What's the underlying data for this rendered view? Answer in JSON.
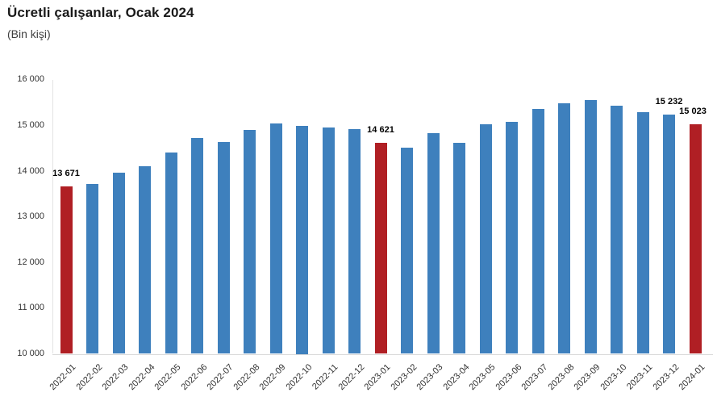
{
  "chart": {
    "title": "Ücretli çalışanlar, Ocak 2024",
    "subtitle": "(Bin kişi)"
  },
  "chart_data": {
    "type": "bar",
    "title": "Ücretli çalışanlar, Ocak 2024",
    "subtitle": "(Bin kişi)",
    "xlabel": "",
    "ylabel": "Bin kişi",
    "categories": [
      "2022-01",
      "2022-02",
      "2022-03",
      "2022-04",
      "2022-05",
      "2022-06",
      "2022-07",
      "2022-08",
      "2022-09",
      "2022-10",
      "2022-11",
      "2022-12",
      "2023-01",
      "2023-02",
      "2023-03",
      "2023-04",
      "2023-05",
      "2023-06",
      "2023-07",
      "2023-08",
      "2023-09",
      "2023-10",
      "2023-11",
      "2023-12",
      "2024-01"
    ],
    "values": [
      13671,
      13720,
      13960,
      14110,
      14400,
      14720,
      14630,
      14900,
      15040,
      15000,
      14950,
      14920,
      14621,
      14520,
      14840,
      14620,
      15030,
      15080,
      15370,
      15480,
      15560,
      15440,
      15300,
      15232,
      15023
    ],
    "data_labels": {
      "2022-01": "13 671",
      "2023-01": "14 621",
      "2023-12": "15 232",
      "2024-01": "15 023"
    },
    "highlight_categories": [
      "2022-01",
      "2023-01",
      "2024-01"
    ],
    "ylim": [
      10000,
      16000
    ],
    "ytick_values": [
      10000,
      11000,
      12000,
      13000,
      14000,
      15000,
      16000
    ],
    "ytick_labels": [
      "10 000",
      "11 000",
      "12 000",
      "13 000",
      "14 000",
      "15 000",
      "16 000"
    ],
    "grid": false,
    "legend": false,
    "colors": {
      "bar": "#3E80BD",
      "highlight": "#B01F24",
      "x_axis_line": "#D9D9D9",
      "y_axis_line": "#E4E4E4",
      "tick_text": "#333333",
      "label_text": "#000000"
    }
  }
}
